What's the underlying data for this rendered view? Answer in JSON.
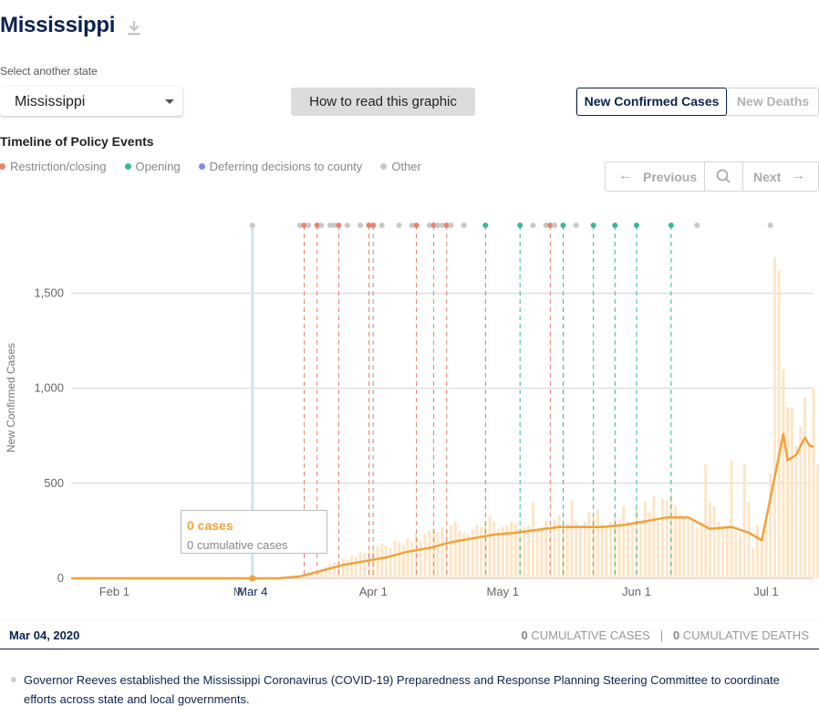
{
  "header": {
    "title": "Mississippi",
    "download_icon": "download-icon"
  },
  "state_selector": {
    "label": "Select another state",
    "value": "Mississippi"
  },
  "help_button": {
    "label": "How to read this graphic"
  },
  "metric_toggle": {
    "active": "New Confirmed Cases",
    "inactive": "New Deaths"
  },
  "timeline": {
    "title": "Timeline of Policy Events",
    "legend": [
      {
        "label": "Restriction/closing",
        "color": "#e8826a"
      },
      {
        "label": "Opening",
        "color": "#39b79a"
      },
      {
        "label": "Deferring decisions to county",
        "color": "#7d8ee8"
      },
      {
        "label": "Other",
        "color": "#c8c8c8"
      }
    ],
    "nav": {
      "previous": "Previous",
      "next": "Next",
      "search_icon": "search-icon"
    }
  },
  "tooltip": {
    "cases": "0 cases",
    "cumulative": "0 cumulative cases"
  },
  "status": {
    "date": "Mar 04, 2020",
    "cum_cases_value": "0",
    "cum_cases_label": " cumulative cases",
    "separator": "|",
    "cum_deaths_value": "0",
    "cum_deaths_label": " cumulative deaths"
  },
  "event": {
    "text": "Governor Reeves established the Mississippi Coronavirus (COVID-19) Preparedness and Response Planning Steering Committee to coordinate efforts across state and local governments."
  },
  "chart_data": {
    "type": "bar",
    "ylabel": "New Confirmed Cases",
    "ylim": [
      0,
      1900
    ],
    "yticks": [
      0,
      500,
      1000,
      1500
    ],
    "ytick_labels": [
      "0",
      "500",
      "1,000",
      "1,500"
    ],
    "xticks": [
      {
        "label": "Feb 1",
        "date": "2020-02-01"
      },
      {
        "label": "M",
        "date": "2020-03-01"
      },
      {
        "label": "Mar 4",
        "date": "2020-03-04",
        "highlight": true
      },
      {
        "label": "Apr 1",
        "date": "2020-04-01"
      },
      {
        "label": "May 1",
        "date": "2020-05-01"
      },
      {
        "label": "Jun 1",
        "date": "2020-06-01"
      },
      {
        "label": "Jul 1",
        "date": "2020-07-01"
      }
    ],
    "date_range": [
      "2020-01-22",
      "2020-07-12"
    ],
    "selected_date": "2020-03-04",
    "daily_new_cases": {
      "start_date": "2020-03-11",
      "values": [
        1,
        5,
        4,
        10,
        13,
        14,
        29,
        30,
        43,
        50,
        60,
        75,
        84,
        93,
        103,
        98,
        120,
        110,
        140,
        136,
        145,
        150,
        170,
        180,
        170,
        160,
        200,
        190,
        170,
        210,
        195,
        240,
        200,
        230,
        250,
        260,
        240,
        270,
        260,
        280,
        300,
        250,
        240,
        230,
        260,
        280,
        270,
        290,
        330,
        300,
        260,
        270,
        280,
        300,
        290,
        260,
        270,
        280,
        400,
        250,
        270,
        300,
        230,
        310,
        330,
        280,
        290,
        410,
        300,
        280,
        300,
        350,
        320,
        360,
        290,
        270,
        300,
        330,
        310,
        380,
        300,
        280,
        370,
        290,
        400,
        350,
        430,
        300,
        420,
        410,
        440,
        380,
        340,
        320,
        310,
        300,
        270,
        300,
        600,
        400,
        380,
        300,
        260,
        280,
        620,
        250,
        230,
        600,
        400,
        160,
        280,
        200,
        300,
        550,
        1690,
        1620,
        1100,
        900,
        900,
        700,
        800,
        950,
        700,
        1000,
        600,
        900,
        700,
        1070,
        800,
        1000,
        1000,
        700,
        700,
        680
      ]
    },
    "average_series": {
      "name": "7-day average",
      "points": [
        [
          "2020-01-22",
          0
        ],
        [
          "2020-03-10",
          0
        ],
        [
          "2020-03-15",
          10
        ],
        [
          "2020-03-20",
          40
        ],
        [
          "2020-03-25",
          70
        ],
        [
          "2020-03-30",
          90
        ],
        [
          "2020-04-04",
          110
        ],
        [
          "2020-04-09",
          140
        ],
        [
          "2020-04-14",
          160
        ],
        [
          "2020-04-19",
          190
        ],
        [
          "2020-04-24",
          210
        ],
        [
          "2020-04-29",
          230
        ],
        [
          "2020-05-04",
          240
        ],
        [
          "2020-05-09",
          255
        ],
        [
          "2020-05-14",
          270
        ],
        [
          "2020-05-19",
          270
        ],
        [
          "2020-05-24",
          270
        ],
        [
          "2020-05-29",
          280
        ],
        [
          "2020-06-03",
          300
        ],
        [
          "2020-06-08",
          320
        ],
        [
          "2020-06-13",
          320
        ],
        [
          "2020-06-18",
          260
        ],
        [
          "2020-06-23",
          270
        ],
        [
          "2020-06-27",
          240
        ],
        [
          "2020-06-30",
          200
        ],
        [
          "2020-07-02",
          420
        ],
        [
          "2020-07-05",
          760
        ],
        [
          "2020-07-06",
          620
        ],
        [
          "2020-07-08",
          650
        ],
        [
          "2020-07-10",
          740
        ],
        [
          "2020-07-11",
          700
        ],
        [
          "2020-07-12",
          690
        ]
      ]
    },
    "policy_events": [
      {
        "date": "2020-03-04",
        "type": "other"
      },
      {
        "date": "2020-03-15",
        "type": "other"
      },
      {
        "date": "2020-03-16",
        "type": "restriction"
      },
      {
        "date": "2020-03-17",
        "type": "other"
      },
      {
        "date": "2020-03-19",
        "type": "restriction"
      },
      {
        "date": "2020-03-20",
        "type": "other"
      },
      {
        "date": "2020-03-22",
        "type": "other"
      },
      {
        "date": "2020-03-23",
        "type": "other"
      },
      {
        "date": "2020-03-24",
        "type": "restriction"
      },
      {
        "date": "2020-03-26",
        "type": "other"
      },
      {
        "date": "2020-03-29",
        "type": "other"
      },
      {
        "date": "2020-03-31",
        "type": "restriction"
      },
      {
        "date": "2020-04-01",
        "type": "restriction"
      },
      {
        "date": "2020-04-03",
        "type": "other"
      },
      {
        "date": "2020-04-07",
        "type": "other"
      },
      {
        "date": "2020-04-10",
        "type": "other"
      },
      {
        "date": "2020-04-11",
        "type": "restriction"
      },
      {
        "date": "2020-04-14",
        "type": "other"
      },
      {
        "date": "2020-04-15",
        "type": "restriction"
      },
      {
        "date": "2020-04-16",
        "type": "other"
      },
      {
        "date": "2020-04-17",
        "type": "other"
      },
      {
        "date": "2020-04-18",
        "type": "restriction"
      },
      {
        "date": "2020-04-19",
        "type": "other"
      },
      {
        "date": "2020-04-22",
        "type": "other"
      },
      {
        "date": "2020-04-27",
        "type": "opening"
      },
      {
        "date": "2020-05-05",
        "type": "opening"
      },
      {
        "date": "2020-05-08",
        "type": "other"
      },
      {
        "date": "2020-05-11",
        "type": "other"
      },
      {
        "date": "2020-05-12",
        "type": "restriction"
      },
      {
        "date": "2020-05-13",
        "type": "other"
      },
      {
        "date": "2020-05-15",
        "type": "opening"
      },
      {
        "date": "2020-05-18",
        "type": "other"
      },
      {
        "date": "2020-05-22",
        "type": "opening"
      },
      {
        "date": "2020-05-27",
        "type": "opening"
      },
      {
        "date": "2020-06-01",
        "type": "opening"
      },
      {
        "date": "2020-06-09",
        "type": "opening"
      },
      {
        "date": "2020-06-15",
        "type": "other"
      },
      {
        "date": "2020-07-02",
        "type": "other"
      }
    ],
    "colors": {
      "bars": "#fde5c6",
      "line": "#f0a23c",
      "grid": "#d3d3d3",
      "selected_band": "#cfe2f7"
    }
  }
}
